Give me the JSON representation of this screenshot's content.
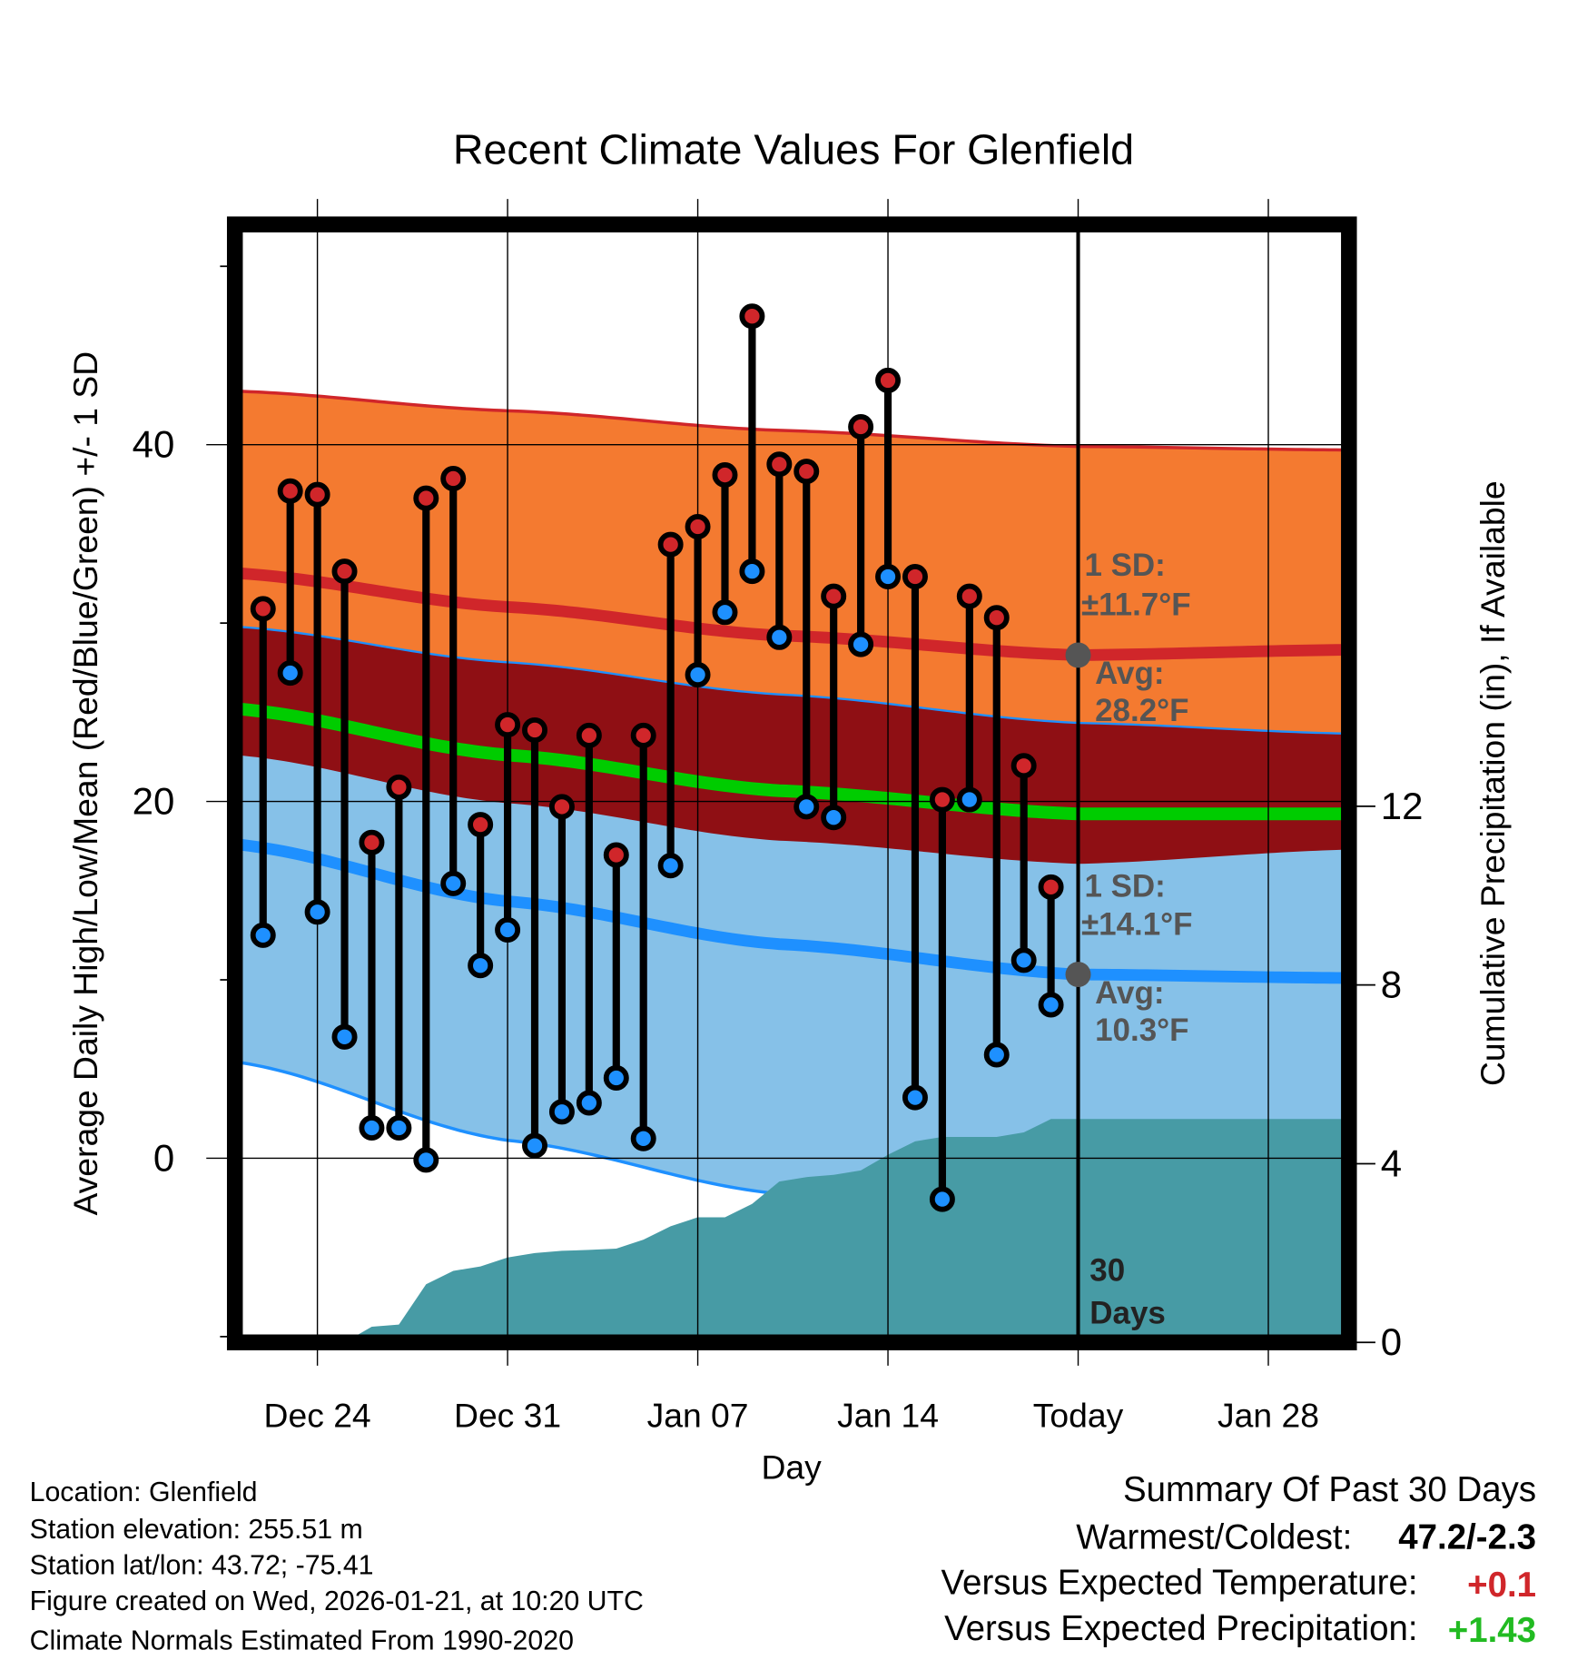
{
  "chart_data": {
    "type": "line",
    "title": "Recent Climate Values For Glenfield",
    "xlabel": "Day",
    "ylabel": "Average Daily High/Low/Mean (Red/Blue/Green) +/- 1 SD",
    "y2label": "Cumulative Precipitation (in), If Available",
    "ylim": [
      -10.3,
      52.3
    ],
    "y2lim": [
      0,
      25
    ],
    "y_ticks": [
      "0",
      "20",
      "40"
    ],
    "y_tick_values": [
      0,
      20,
      40
    ],
    "y2_ticks": [
      "0",
      "4",
      "8",
      "12"
    ],
    "y2_tick_values": [
      0,
      4,
      8,
      12
    ],
    "x_ticks": [
      "Dec 24",
      "Dec 31",
      "Jan 07",
      "Jan 14",
      "Today",
      "Jan 28"
    ],
    "x_tick_day_index": [
      3,
      10,
      17,
      24,
      31,
      38
    ],
    "day_index_note": "day 0 = Dec 21",
    "x_range_days": [
      0.3,
      41.2
    ],
    "today_index": 31,
    "today_label": [
      "30",
      "Days"
    ],
    "daily": {
      "dates": [
        "Dec 22",
        "Dec 23",
        "Dec 24",
        "Dec 25",
        "Dec 26",
        "Dec 27",
        "Dec 28",
        "Dec 29",
        "Dec 30",
        "Dec 31",
        "Jan 01",
        "Jan 02",
        "Jan 03",
        "Jan 04",
        "Jan 05",
        "Jan 06",
        "Jan 07",
        "Jan 08",
        "Jan 09",
        "Jan 10",
        "Jan 11",
        "Jan 12",
        "Jan 13",
        "Jan 14",
        "Jan 15",
        "Jan 16",
        "Jan 17",
        "Jan 18",
        "Jan 19",
        "Jan 20"
      ],
      "high": [
        30.8,
        37.4,
        37.2,
        32.9,
        17.7,
        20.8,
        37.0,
        38.1,
        18.7,
        24.3,
        24.0,
        19.7,
        23.7,
        17.0,
        23.7,
        34.4,
        35.4,
        38.3,
        47.2,
        38.9,
        38.5,
        31.5,
        41.0,
        43.6,
        32.6,
        20.1,
        31.5,
        30.3,
        22.0,
        15.2
      ],
      "low": [
        12.5,
        27.2,
        13.8,
        6.8,
        1.7,
        1.7,
        -0.1,
        15.4,
        10.8,
        12.8,
        0.7,
        2.6,
        3.1,
        4.5,
        1.1,
        16.4,
        27.1,
        30.6,
        32.9,
        29.2,
        19.7,
        19.1,
        28.8,
        32.6,
        3.4,
        -2.3,
        20.1,
        5.8,
        11.1,
        8.6
      ],
      "cumulative_precip": [
        0,
        0,
        0,
        0,
        0.35,
        0.4,
        1.3,
        1.6,
        1.7,
        1.9,
        2.0,
        2.05,
        2.07,
        2.1,
        2.3,
        2.6,
        2.8,
        2.8,
        3.1,
        3.6,
        3.7,
        3.75,
        3.85,
        4.2,
        4.5,
        4.6,
        4.6,
        4.6,
        4.7,
        5.0
      ]
    },
    "normals": {
      "day_index": [
        0,
        10,
        20,
        31,
        41
      ],
      "avg_high": [
        32.8,
        30.9,
        29.3,
        28.2,
        28.5
      ],
      "sd_high": [
        10.2,
        11.0,
        11.5,
        11.7,
        11.2
      ],
      "avg_low": [
        17.6,
        14.4,
        12.0,
        10.3,
        10.1
      ],
      "sd_low": [
        12.2,
        13.4,
        14.0,
        14.1,
        13.7
      ],
      "avg_mean": [
        25.2,
        22.6,
        20.6,
        19.3,
        19.3
      ]
    },
    "annotations": {
      "high_sd_label": "1 SD:",
      "high_sd_value": "±11.7°F",
      "high_avg_label": "Avg:",
      "high_avg_value": "28.2°F",
      "low_sd_label": "1 SD:",
      "low_sd_value": "±14.1°F",
      "low_avg_label": "Avg:",
      "low_avg_value": "10.3°F",
      "high_avg_today": 28.2,
      "low_avg_today": 10.3
    },
    "colors": {
      "high_band": "#f47a30",
      "overlap_band": "#8f0f14",
      "low_band": "#86c1e8",
      "precip": "#479ba5",
      "mean_line": "#00cc00",
      "high_line": "#d0262a",
      "low_line": "#1e90ff",
      "high_dot": "#d0262a",
      "low_dot": "#1e90ff"
    }
  },
  "footer": {
    "location": "Location: Glenfield",
    "elevation": "Station elevation: 255.51 m",
    "latlon": "Station lat/lon: 43.72; -75.41",
    "created": "Figure created on Wed, 2026-01-21, at 10:20 UTC",
    "normals": "Climate Normals Estimated From 1990-2020"
  },
  "summary": {
    "title": "Summary Of Past 30 Days",
    "warmest_coldest_label": "Warmest/Coldest:",
    "warmest_coldest_value": "47.2/-2.3",
    "temp_label": "Versus Expected Temperature:",
    "temp_value": "+0.1",
    "precip_label": "Versus Expected Precipitation:",
    "precip_value": "+1.43",
    "temp_color": "#d0262a",
    "precip_color": "#22bb22"
  }
}
